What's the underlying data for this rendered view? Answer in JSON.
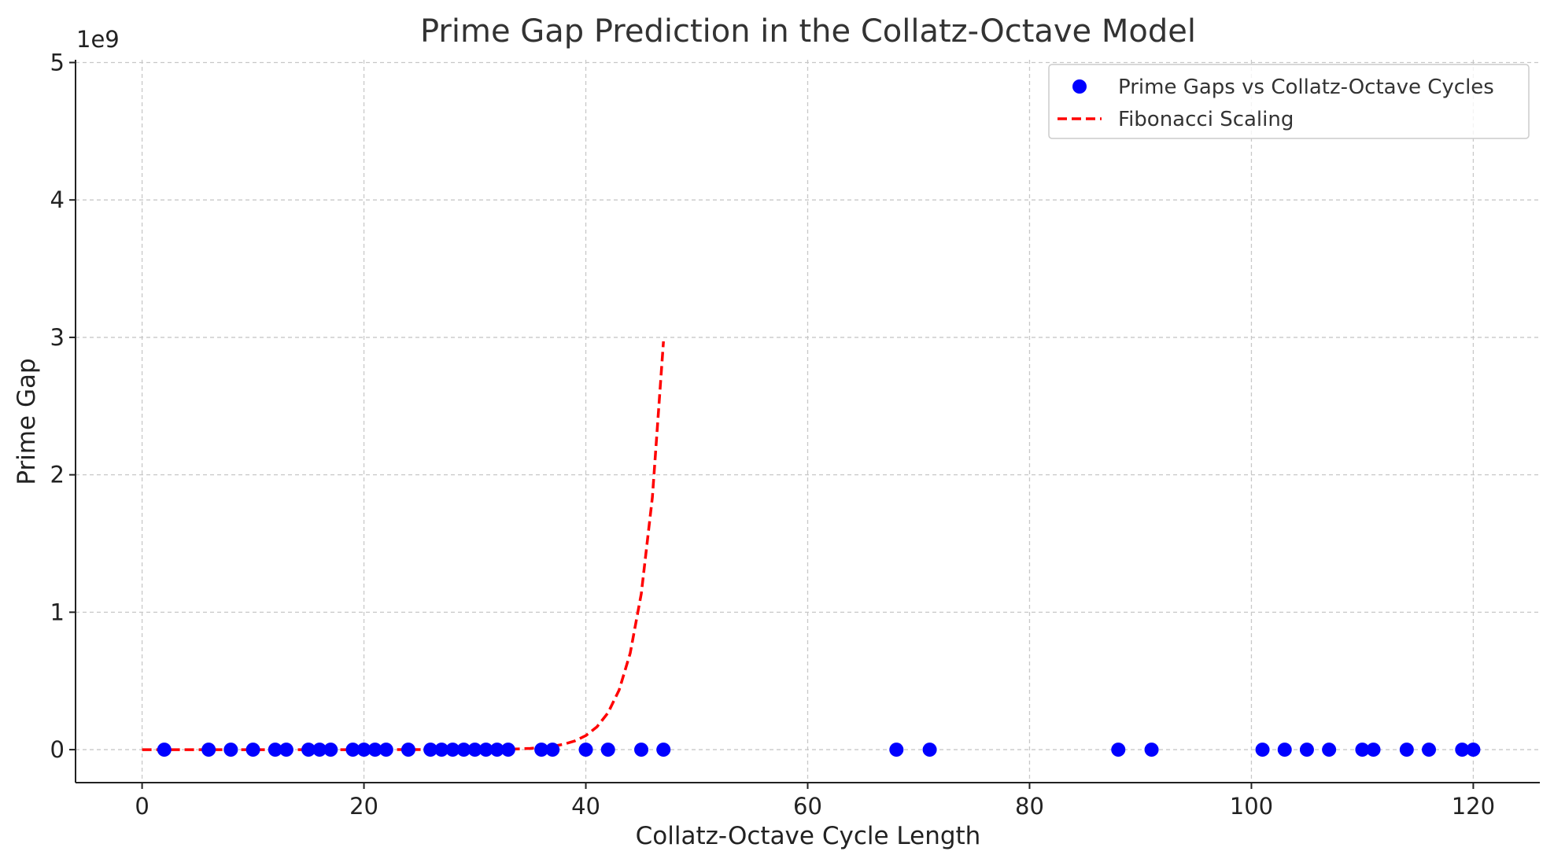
{
  "chart_data": {
    "type": "scatter",
    "title": "Prime Gap Prediction in the Collatz-Octave Model",
    "xlabel": "Collatz-Octave Cycle Length",
    "ylabel": "Prime Gap",
    "y_offset_label": "1e9",
    "xlim": [
      -6,
      126
    ],
    "ylim": [
      -240000000,
      5020000000
    ],
    "x_ticks": [
      0,
      20,
      40,
      60,
      80,
      100,
      120
    ],
    "x_tick_labels": [
      "0",
      "20",
      "40",
      "60",
      "80",
      "100",
      "120"
    ],
    "y_ticks": [
      0,
      1000000000,
      2000000000,
      3000000000,
      4000000000,
      5000000000
    ],
    "y_tick_labels": [
      "0",
      "1",
      "2",
      "3",
      "4",
      "5"
    ],
    "grid": true,
    "legend_position": "top-right",
    "colors": {
      "scatter": "#0000ff",
      "line": "#ff0000",
      "grid": "#c8c8c8",
      "title": "#333333"
    },
    "series": [
      {
        "name": "Prime Gaps vs Collatz-Octave Cycles",
        "kind": "scatter",
        "x": [
          2,
          6,
          8,
          10,
          12,
          13,
          15,
          16,
          17,
          19,
          20,
          21,
          22,
          24,
          26,
          27,
          28,
          29,
          30,
          31,
          32,
          33,
          36,
          37,
          40,
          42,
          45,
          47,
          68,
          71,
          88,
          91,
          101,
          103,
          105,
          107,
          110,
          111,
          114,
          116,
          119,
          120
        ],
        "y": [
          2,
          2,
          2,
          2,
          2,
          2,
          2,
          2,
          2,
          2,
          2,
          2,
          2,
          2,
          2,
          2,
          2,
          2,
          2,
          2,
          2,
          2,
          2,
          2,
          2,
          2,
          2,
          2,
          2,
          2,
          2,
          2,
          2,
          2,
          2,
          2,
          2,
          2,
          2,
          2,
          2,
          2
        ]
      },
      {
        "name": "Fibonacci Scaling",
        "kind": "line",
        "style": "dashed",
        "x_range": [
          0,
          47
        ],
        "formula": "F(n)"
      }
    ]
  }
}
